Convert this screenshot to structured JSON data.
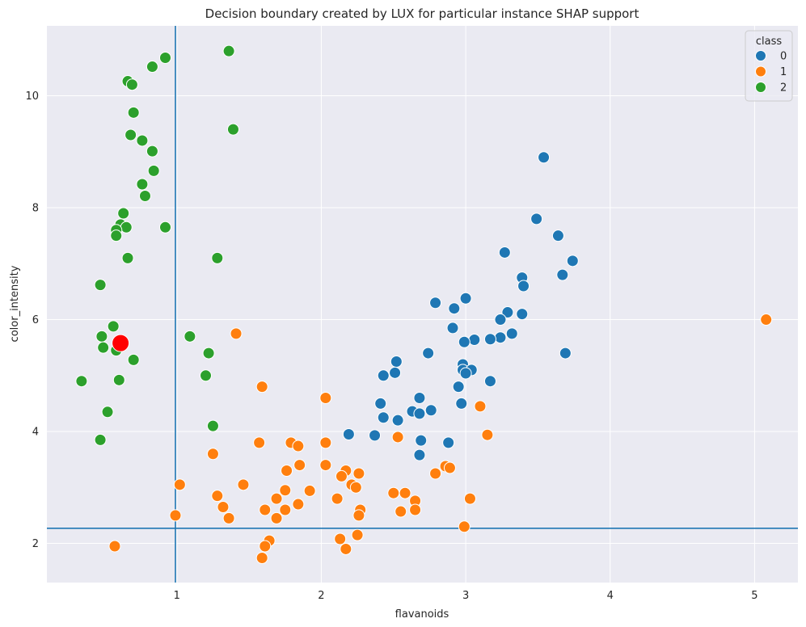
{
  "chart_data": {
    "type": "scatter",
    "title": "Decision boundary created by LUX for particular instance SHAP support",
    "xlabel": "flavanoids",
    "ylabel": "color_intensity",
    "xlim": [
      0.1,
      5.3
    ],
    "ylim": [
      1.3,
      11.25
    ],
    "xticks": [
      1,
      2,
      3,
      4,
      5
    ],
    "yticks": [
      2,
      4,
      6,
      8,
      10
    ],
    "grid": true,
    "legend": {
      "title": "class",
      "placement": "top-right",
      "entries": [
        {
          "label": "0",
          "color": "#1f77b4"
        },
        {
          "label": "1",
          "color": "#ff7f0e"
        },
        {
          "label": "2",
          "color": "#2ca02c"
        }
      ]
    },
    "boundary_lines": {
      "vertical_x": 0.99,
      "horizontal_y": 2.27,
      "color": "#1f77b4"
    },
    "highlighted_instance": {
      "x": 0.61,
      "y": 5.58,
      "color": "#ff0000"
    },
    "series": [
      {
        "name": "0",
        "color": "#1f77b4",
        "points": [
          [
            3.54,
            8.9
          ],
          [
            3.49,
            7.8
          ],
          [
            3.64,
            7.5
          ],
          [
            3.27,
            7.2
          ],
          [
            3.74,
            7.05
          ],
          [
            3.67,
            6.8
          ],
          [
            3.39,
            6.75
          ],
          [
            3.4,
            6.6
          ],
          [
            3.0,
            6.38
          ],
          [
            2.79,
            6.3
          ],
          [
            2.92,
            6.2
          ],
          [
            3.29,
            6.13
          ],
          [
            3.39,
            6.1
          ],
          [
            3.24,
            6.0
          ],
          [
            2.91,
            5.85
          ],
          [
            3.32,
            5.75
          ],
          [
            3.24,
            5.68
          ],
          [
            3.17,
            5.65
          ],
          [
            3.06,
            5.64
          ],
          [
            2.99,
            5.6
          ],
          [
            3.69,
            5.4
          ],
          [
            2.74,
            5.4
          ],
          [
            2.52,
            5.25
          ],
          [
            2.98,
            5.2
          ],
          [
            2.98,
            5.1
          ],
          [
            3.04,
            5.1
          ],
          [
            2.51,
            5.05
          ],
          [
            3.0,
            5.04
          ],
          [
            2.43,
            5.0
          ],
          [
            3.17,
            4.9
          ],
          [
            2.95,
            4.8
          ],
          [
            2.68,
            4.6
          ],
          [
            2.41,
            4.5
          ],
          [
            2.97,
            4.5
          ],
          [
            2.76,
            4.38
          ],
          [
            2.63,
            4.36
          ],
          [
            2.68,
            4.32
          ],
          [
            2.43,
            4.25
          ],
          [
            2.53,
            4.2
          ],
          [
            2.19,
            3.95
          ],
          [
            2.37,
            3.93
          ],
          [
            2.69,
            3.84
          ],
          [
            2.88,
            3.8
          ],
          [
            2.68,
            3.58
          ]
        ]
      },
      {
        "name": "1",
        "color": "#ff7f0e",
        "points": [
          [
            5.08,
            6.0
          ],
          [
            1.41,
            5.75
          ],
          [
            1.59,
            4.8
          ],
          [
            2.03,
            4.6
          ],
          [
            3.1,
            4.45
          ],
          [
            3.15,
            3.94
          ],
          [
            2.53,
            3.9
          ],
          [
            1.57,
            3.8
          ],
          [
            1.79,
            3.8
          ],
          [
            2.03,
            3.8
          ],
          [
            1.84,
            3.74
          ],
          [
            1.25,
            3.6
          ],
          [
            1.85,
            3.4
          ],
          [
            2.03,
            3.4
          ],
          [
            2.86,
            3.38
          ],
          [
            2.89,
            3.35
          ],
          [
            1.76,
            3.3
          ],
          [
            2.17,
            3.3
          ],
          [
            2.26,
            3.25
          ],
          [
            2.79,
            3.25
          ],
          [
            2.14,
            3.2
          ],
          [
            1.02,
            3.05
          ],
          [
            1.46,
            3.05
          ],
          [
            2.21,
            3.05
          ],
          [
            2.24,
            3.0
          ],
          [
            1.75,
            2.95
          ],
          [
            1.92,
            2.94
          ],
          [
            2.5,
            2.9
          ],
          [
            2.58,
            2.9
          ],
          [
            1.28,
            2.85
          ],
          [
            1.69,
            2.8
          ],
          [
            2.11,
            2.8
          ],
          [
            3.03,
            2.8
          ],
          [
            2.65,
            2.76
          ],
          [
            1.84,
            2.7
          ],
          [
            1.32,
            2.65
          ],
          [
            1.61,
            2.6
          ],
          [
            1.75,
            2.6
          ],
          [
            2.27,
            2.6
          ],
          [
            2.65,
            2.6
          ],
          [
            2.55,
            2.57
          ],
          [
            2.26,
            2.5
          ],
          [
            0.99,
            2.5
          ],
          [
            1.36,
            2.45
          ],
          [
            1.69,
            2.45
          ],
          [
            2.99,
            2.3
          ],
          [
            2.25,
            2.15
          ],
          [
            2.13,
            2.08
          ],
          [
            1.64,
            2.05
          ],
          [
            0.57,
            1.95
          ],
          [
            1.61,
            1.95
          ],
          [
            2.17,
            1.9
          ],
          [
            1.59,
            1.74
          ]
        ]
      },
      {
        "name": "2",
        "color": "#2ca02c",
        "points": [
          [
            1.36,
            10.8
          ],
          [
            0.92,
            10.68
          ],
          [
            0.83,
            10.52
          ],
          [
            0.66,
            10.26
          ],
          [
            0.69,
            10.2
          ],
          [
            0.7,
            9.7
          ],
          [
            1.39,
            9.4
          ],
          [
            0.68,
            9.3
          ],
          [
            0.76,
            9.2
          ],
          [
            0.83,
            9.01
          ],
          [
            0.84,
            8.66
          ],
          [
            0.76,
            8.42
          ],
          [
            0.78,
            8.21
          ],
          [
            0.63,
            7.9
          ],
          [
            0.61,
            7.7
          ],
          [
            0.65,
            7.65
          ],
          [
            0.92,
            7.65
          ],
          [
            0.58,
            7.6
          ],
          [
            0.58,
            7.5
          ],
          [
            0.66,
            7.1
          ],
          [
            1.28,
            7.1
          ],
          [
            0.47,
            6.62
          ],
          [
            0.56,
            5.88
          ],
          [
            0.48,
            5.7
          ],
          [
            1.09,
            5.7
          ],
          [
            0.49,
            5.5
          ],
          [
            0.58,
            5.45
          ],
          [
            1.22,
            5.4
          ],
          [
            0.7,
            5.28
          ],
          [
            1.2,
            5.0
          ],
          [
            0.6,
            4.92
          ],
          [
            0.34,
            4.9
          ],
          [
            0.52,
            4.35
          ],
          [
            1.25,
            4.1
          ],
          [
            0.47,
            3.85
          ]
        ]
      }
    ]
  }
}
